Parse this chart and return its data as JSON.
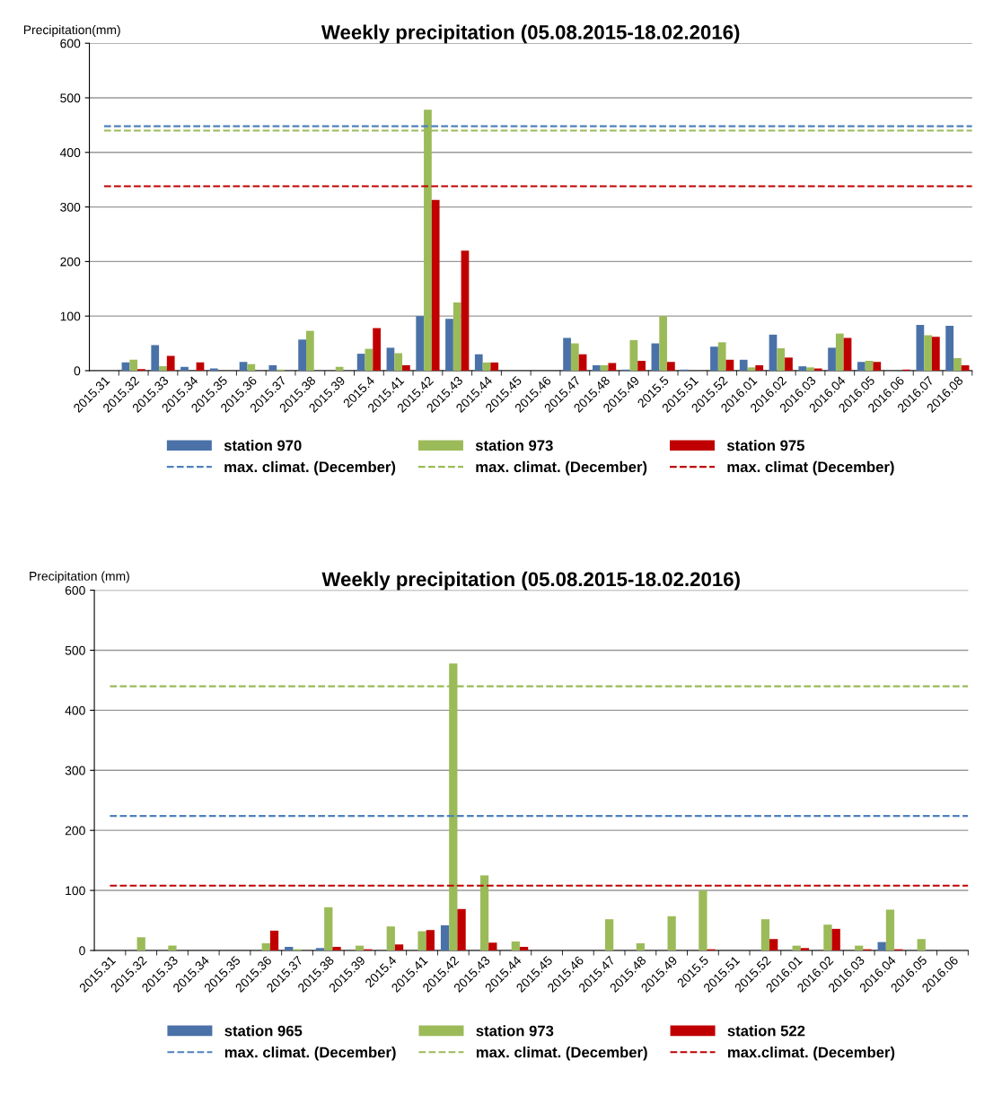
{
  "chart_data": [
    {
      "type": "bar",
      "title": "Weekly precipitation (05.08.2015-18.02.2016)",
      "ylabel": "Precipitation(mm)",
      "categories": [
        "2015.31",
        "2015.32",
        "2015.33",
        "2015.34",
        "2015.35",
        "2015.36",
        "2015.37",
        "2015.38",
        "2015.39",
        "2015.4",
        "2015.41",
        "2015.42",
        "2015.43",
        "2015.44",
        "2015.45",
        "2015.46",
        "2015.47",
        "2015.48",
        "2015.49",
        "2015.5",
        "2015.51",
        "2015.52",
        "2016.01",
        "2016.02",
        "2016.03",
        "2016.04",
        "2016.05",
        "2016.06",
        "2016.07",
        "2016.08"
      ],
      "series": [
        {
          "name": "station 970",
          "color": "#4a72a8",
          "values": [
            0,
            15,
            47,
            7,
            4,
            16,
            10,
            57,
            0,
            31,
            42,
            100,
            95,
            30,
            0,
            0,
            60,
            10,
            2,
            50,
            2,
            44,
            20,
            66,
            8,
            42,
            16,
            0,
            84,
            82
          ]
        },
        {
          "name": "station 973",
          "color": "#9bbb59",
          "values": [
            0,
            20,
            8,
            0,
            0,
            12,
            2,
            73,
            7,
            40,
            32,
            478,
            125,
            15,
            0,
            0,
            50,
            10,
            56,
            100,
            0,
            52,
            6,
            41,
            6,
            68,
            18,
            0,
            65,
            23
          ]
        },
        {
          "name": "station 975",
          "color": "#c00000",
          "values": [
            0,
            3,
            27,
            15,
            0,
            0,
            0,
            0,
            0,
            78,
            10,
            313,
            220,
            15,
            0,
            0,
            30,
            14,
            18,
            16,
            0,
            20,
            10,
            24,
            4,
            60,
            16,
            2,
            62,
            10
          ]
        }
      ],
      "ref_lines": [
        {
          "axis": "y",
          "value": 448,
          "label": "max. climat. (December)",
          "color": "#4f81bd",
          "line_style": "dashed"
        },
        {
          "axis": "y",
          "value": 440,
          "label": "max. climat. (December)",
          "color": "#9bbb59",
          "line_style": "dashed"
        },
        {
          "axis": "y",
          "value": 338,
          "label": "max. climat (December)",
          "color": "#c00000",
          "line_style": "dashed"
        }
      ],
      "ylim": [
        0,
        600
      ],
      "yticks": [
        0,
        100,
        200,
        300,
        400,
        500,
        600
      ],
      "grid": "y",
      "legend": "bottom"
    },
    {
      "type": "bar",
      "title": "Weekly precipitation (05.08.2015-18.02.2016)",
      "ylabel": "Precipitation (mm)",
      "categories": [
        "2015.31",
        "2015.32",
        "2015.33",
        "2015.34",
        "2015.35",
        "2015.36",
        "2015.37",
        "2015.38",
        "2015.39",
        "2015.4",
        "2015.41",
        "2015.42",
        "2015.43",
        "2015.44",
        "2015.45",
        "2015.46",
        "2015.47",
        "2015.48",
        "2015.49",
        "2015.5",
        "2015.51",
        "2015.52",
        "2016.01",
        "2016.02",
        "2016.03",
        "2016.04",
        "2016.05",
        "2016.06"
      ],
      "series": [
        {
          "name": "station 965",
          "color": "#4a72a8",
          "values": [
            0,
            0,
            0,
            0,
            0,
            0,
            6,
            4,
            0,
            0,
            0,
            42,
            0,
            0,
            0,
            0,
            0,
            0,
            0,
            0,
            0,
            0,
            0,
            0,
            0,
            14,
            0,
            0
          ]
        },
        {
          "name": "station 973",
          "color": "#9bbb59",
          "values": [
            0,
            22,
            8,
            0,
            0,
            12,
            2,
            72,
            8,
            40,
            32,
            478,
            125,
            15,
            0,
            0,
            52,
            12,
            57,
            100,
            0,
            52,
            8,
            43,
            8,
            68,
            19,
            0
          ]
        },
        {
          "name": "station 522",
          "color": "#c00000",
          "values": [
            0,
            0,
            0,
            0,
            0,
            33,
            0,
            6,
            2,
            10,
            34,
            69,
            13,
            6,
            0,
            0,
            0,
            0,
            0,
            2,
            0,
            19,
            4,
            36,
            2,
            2,
            0,
            0
          ]
        }
      ],
      "ref_lines": [
        {
          "axis": "y",
          "value": 224,
          "label": "max. climat. (December)",
          "color": "#4f81bd",
          "line_style": "dashed"
        },
        {
          "axis": "y",
          "value": 440,
          "label": "max. climat. (December)",
          "color": "#9bbb59",
          "line_style": "dashed"
        },
        {
          "axis": "y",
          "value": 108,
          "label": "max.climat. (December)",
          "color": "#c00000",
          "line_style": "dashed"
        }
      ],
      "ylim": [
        0,
        600
      ],
      "yticks": [
        0,
        100,
        200,
        300,
        400,
        500,
        600
      ],
      "grid": "y",
      "legend": "bottom"
    }
  ]
}
